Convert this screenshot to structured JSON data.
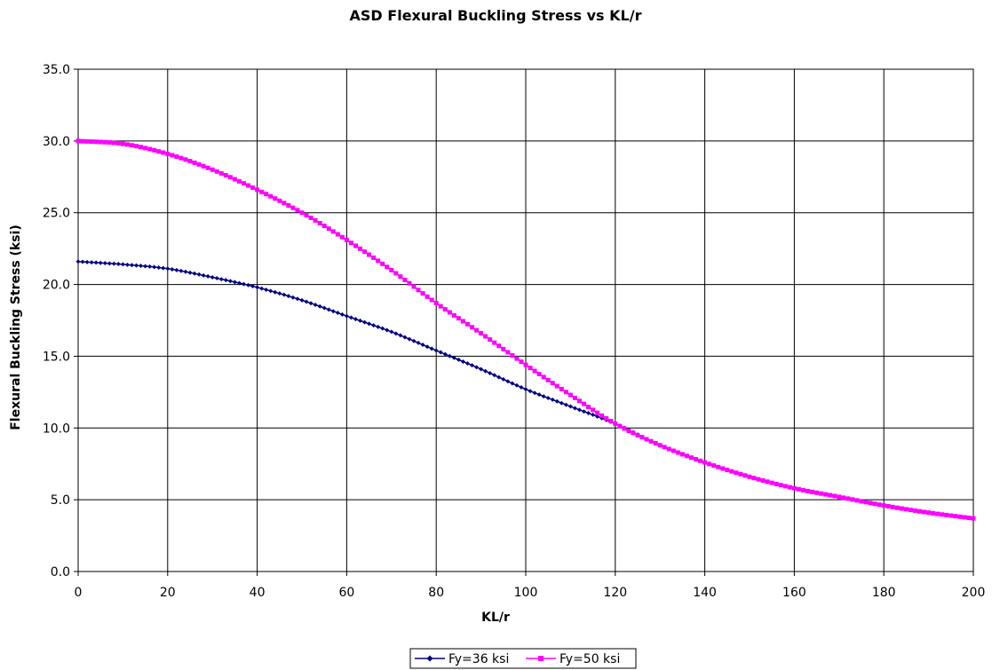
{
  "chart_data": {
    "type": "line",
    "title": "ASD Flexural Buckling Stress vs KL/r",
    "xlabel": "KL/r",
    "ylabel": "Flexural Buckling Stress (ksi)",
    "xlim": [
      0,
      200
    ],
    "ylim": [
      0,
      35
    ],
    "x_ticks": [
      "0",
      "20",
      "40",
      "60",
      "80",
      "100",
      "120",
      "140",
      "160",
      "180",
      "200"
    ],
    "y_ticks": [
      "0.0",
      "5.0",
      "10.0",
      "15.0",
      "20.0",
      "25.0",
      "30.0",
      "35.0"
    ],
    "grid": true,
    "legend_position": "bottom",
    "x": [
      0,
      10,
      20,
      30,
      40,
      50,
      60,
      70,
      80,
      90,
      100,
      110,
      120,
      130,
      140,
      150,
      160,
      170,
      180,
      190,
      200
    ],
    "series": [
      {
        "name": "Fy=36 ksi",
        "color": "#000080",
        "marker": "diamond",
        "values": [
          21.6,
          21.4,
          21.1,
          20.5,
          19.8,
          18.9,
          17.8,
          16.7,
          15.4,
          14.1,
          12.7,
          11.5,
          10.3,
          8.8,
          7.6,
          6.6,
          5.8,
          5.2,
          4.6,
          4.1,
          3.7
        ]
      },
      {
        "name": "Fy=50 ksi",
        "color": "#FF00FF",
        "marker": "square",
        "values": [
          30.0,
          29.8,
          29.1,
          28.0,
          26.6,
          25.0,
          23.1,
          21.0,
          18.7,
          16.6,
          14.4,
          12.3,
          10.3,
          8.8,
          7.6,
          6.6,
          5.8,
          5.2,
          4.6,
          4.1,
          3.7
        ]
      }
    ]
  }
}
